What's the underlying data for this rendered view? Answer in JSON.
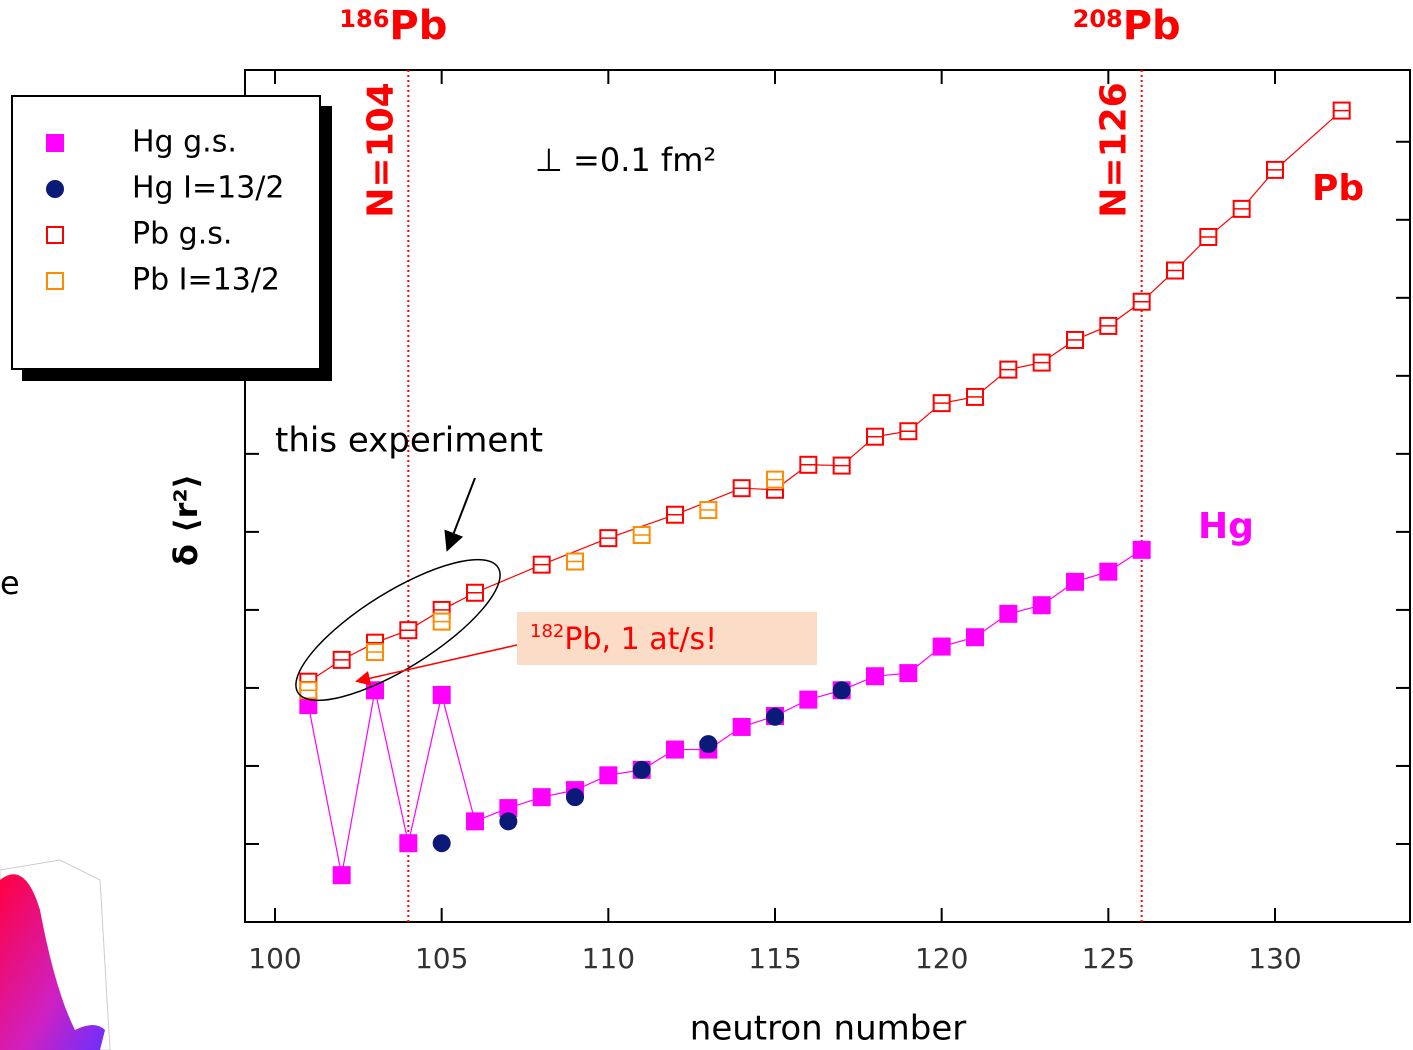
{
  "chart_data": {
    "type": "scatter",
    "x_label": "neutron number",
    "y_label": "δ ⟨r²⟩",
    "xlim": [
      99.1,
      134.05
    ],
    "ylim": [
      0,
      10.92
    ],
    "xticks": [
      100,
      105,
      110,
      115,
      120,
      125,
      130
    ],
    "yticks": [
      1,
      2,
      3,
      4,
      5,
      6,
      7,
      8,
      9,
      10
    ],
    "series": [
      {
        "name": "Hg g.s.",
        "color": "#ff00ff",
        "marker": "square",
        "line": true,
        "x": [
          101,
          102,
          103,
          104,
          105,
          106,
          107,
          108,
          109,
          110,
          111,
          112,
          113,
          114,
          115,
          116,
          117,
          118,
          119,
          120,
          121,
          122,
          123,
          124,
          125,
          126
        ],
        "values": [
          2.78,
          0.6,
          2.97,
          1.01,
          2.91,
          1.29,
          1.46,
          1.6,
          1.69,
          1.88,
          1.95,
          2.21,
          2.21,
          2.5,
          2.64,
          2.85,
          2.97,
          3.15,
          3.19,
          3.53,
          3.65,
          3.95,
          4.06,
          4.36,
          4.49,
          4.77
        ]
      },
      {
        "name": "Hg I=13/2",
        "color": "#0b1a78",
        "marker": "circle",
        "line": false,
        "x": [
          105,
          107,
          109,
          111,
          113,
          115,
          117
        ],
        "values": [
          1.01,
          1.29,
          1.6,
          1.95,
          2.28,
          2.63,
          2.97
        ]
      },
      {
        "name": "Pb g.s.",
        "color": "#ff0000",
        "marker": "open-square",
        "line": true,
        "x": [
          101,
          102,
          103,
          104,
          105,
          106,
          108,
          110,
          112,
          114,
          115,
          116,
          117,
          118,
          119,
          120,
          121,
          122,
          123,
          124,
          125,
          126,
          127,
          128,
          129,
          130,
          132
        ],
        "values": [
          3.08,
          3.36,
          3.58,
          3.74,
          4.0,
          4.22,
          4.58,
          4.92,
          5.22,
          5.56,
          5.54,
          5.86,
          5.85,
          6.22,
          6.29,
          6.65,
          6.73,
          7.08,
          7.17,
          7.46,
          7.64,
          7.95,
          8.35,
          8.78,
          9.14,
          9.64,
          10.4
        ]
      },
      {
        "name": "Pb I=13/2",
        "color": "#ff8c00",
        "marker": "open-square",
        "line": false,
        "x": [
          101,
          103,
          105,
          109,
          111,
          113,
          115
        ],
        "values": [
          2.97,
          3.46,
          3.85,
          4.62,
          4.96,
          5.28,
          5.67
        ]
      }
    ],
    "reference_lines": [
      {
        "x": 104,
        "label": "N=104"
      },
      {
        "x": 126,
        "label": "N=126"
      }
    ],
    "top_labels": [
      {
        "mass": "186",
        "symbol": "Pb"
      },
      {
        "mass": "208",
        "symbol": "Pb"
      }
    ],
    "scale_note": "⊥ =0.1 fm²",
    "annotation": "this experiment",
    "callout": {
      "mass": "182",
      "text": "Pb, 1 at/s!"
    },
    "curve_labels": {
      "pb": "Pb",
      "hg": "Hg"
    },
    "side_fragment": "e"
  }
}
